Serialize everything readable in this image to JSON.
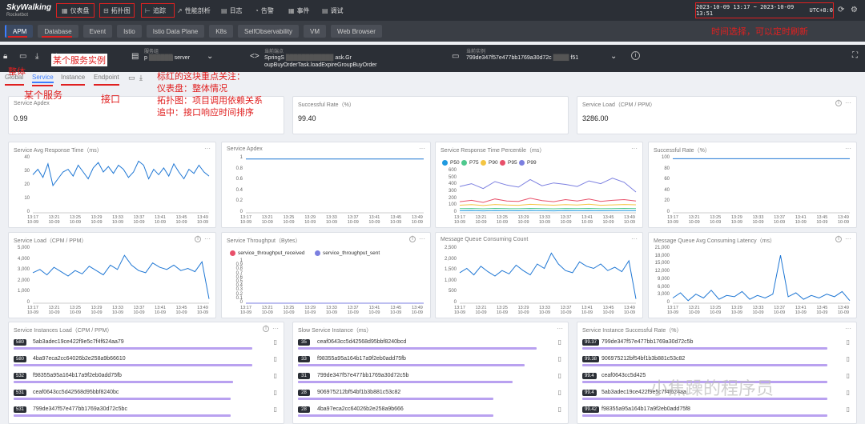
{
  "logo": {
    "title": "SkyWalking",
    "subtitle": "Rocketbot"
  },
  "nav": [
    {
      "icon": "▦",
      "label": "仪表盘"
    },
    {
      "icon": "⊟",
      "label": "拓扑图"
    },
    {
      "icon": "⊢",
      "label": "追踪"
    },
    {
      "icon": "↗",
      "label": "性能剖析"
    },
    {
      "icon": "▤",
      "label": "日志"
    },
    {
      "icon": "◔",
      "label": "告警"
    },
    {
      "icon": "▦",
      "label": "事件"
    },
    {
      "icon": "▤",
      "label": "调试"
    }
  ],
  "time": {
    "range": "2023-10-09 13:17 ~ 2023-10-09 13:51",
    "tz": "UTC+8:0"
  },
  "layers": [
    "APM",
    "Database",
    "Event",
    "Istio",
    "Istio Data Plane",
    "K8s",
    "SelfObservability",
    "VM",
    "Web Browser"
  ],
  "selectors": {
    "group": {
      "label": "服务组",
      "value": "p"
    },
    "service": {
      "label": "当前服务",
      "value": "server"
    },
    "endpoint": {
      "label": "当前端点",
      "value": "SpringS",
      "value2": "ask.Gr",
      "value3": "oupBuyOrderTask.loadExpireGroupBuyOrder"
    },
    "instance": {
      "label": "当前实例",
      "value": "799de347f57e477bb1769a30d72c",
      "value2": "f51"
    }
  },
  "tabs": [
    "Global",
    "Service",
    "Instance",
    "Endpoint"
  ],
  "annotations": {
    "time": "时间选择，可以定时刷新",
    "instance": "某个服务实例",
    "global": "整体",
    "service": "某个服务",
    "endpoint": "接口",
    "notes": [
      "标红的这块重点关注：",
      "仪表盘：整体情况",
      "拓扑图：项目调用依赖关系",
      "追中：接口响应时间排序"
    ]
  },
  "cards": {
    "apdex": {
      "title": "Service Apdex",
      "value": "0.99"
    },
    "success": {
      "title": "Successful Rate（%）",
      "value": "99.40"
    },
    "load": {
      "title": "Service Load（CPM / PPM）",
      "value": "3286.00"
    },
    "c1": {
      "title": "Service Avg Response Time（ms）"
    },
    "c2": {
      "title": "Service Apdex"
    },
    "c3": {
      "title": "Service Response Time Percentile（ms）"
    },
    "c4": {
      "title": "Successful Rate（%）"
    },
    "c5": {
      "title": "Service Load（CPM / PPM）"
    },
    "c6": {
      "title": "Service Throughput（Bytes）"
    },
    "c7": {
      "title": "Message Queue Consuming Count"
    },
    "c8": {
      "title": "Message Queue Avg Consuming Latency（ms）"
    },
    "l1": {
      "title": "Service Instances Load（CPM / PPM）"
    },
    "l2": {
      "title": "Slow Service Instance（ms）"
    },
    "l3": {
      "title": "Service Instance Successful Rate（%）"
    }
  },
  "xticks": [
    "13:17\n10-09",
    "13:21\n10-09",
    "13:25\n10-09",
    "13:29\n10-09",
    "13:33\n10-09",
    "13:37\n10-09",
    "13:41\n10-09",
    "13:45\n10-09",
    "13:49\n10-09"
  ],
  "chart_data": [
    {
      "type": "line",
      "title": "Service Avg Response Time（ms）",
      "ylim": [
        0,
        40
      ],
      "yticks": [
        0,
        10,
        20,
        30,
        40
      ],
      "series": [
        {
          "color": "#1f77d4",
          "values": [
            28,
            32,
            26,
            36,
            20,
            25,
            30,
            32,
            27,
            35,
            30,
            25,
            33,
            37,
            30,
            34,
            29,
            35,
            32,
            26,
            30,
            38,
            35,
            25,
            32,
            28,
            33,
            27,
            36,
            30,
            25,
            32,
            29,
            35,
            30,
            27
          ]
        }
      ]
    },
    {
      "type": "line",
      "title": "Service Apdex",
      "ylim": [
        0,
        1
      ],
      "yticks": [
        0,
        0.2,
        0.4,
        0.6,
        0.8,
        1
      ],
      "series": [
        {
          "color": "#1f77d4",
          "values": [
            0.99,
            0.99,
            0.99,
            0.99,
            0.99,
            0.99,
            0.99,
            0.99,
            0.99,
            0.99
          ]
        }
      ]
    },
    {
      "type": "line",
      "title": "Service Response Time Percentile（ms）",
      "ylim": [
        0,
        600
      ],
      "yticks": [
        0,
        100,
        200,
        300,
        400,
        500,
        600
      ],
      "series": [
        {
          "name": "P50",
          "color": "#1f9ae0",
          "values": [
            30,
            32,
            28,
            31,
            30,
            29,
            33,
            30,
            28,
            31,
            30,
            32,
            29,
            30,
            31,
            30
          ]
        },
        {
          "name": "P75",
          "color": "#4fc98e",
          "values": [
            60,
            62,
            58,
            64,
            60,
            59,
            63,
            61,
            58,
            62,
            60,
            64,
            59,
            60,
            63,
            61
          ]
        },
        {
          "name": "P90",
          "color": "#f4c542",
          "values": [
            110,
            118,
            105,
            120,
            112,
            108,
            122,
            115,
            110,
            118,
            112,
            125,
            108,
            114,
            120,
            115
          ]
        },
        {
          "name": "P95",
          "color": "#e8506a",
          "values": [
            160,
            180,
            150,
            200,
            170,
            165,
            210,
            175,
            160,
            190,
            170,
            200,
            165,
            180,
            190,
            170
          ]
        },
        {
          "name": "P99",
          "color": "#7b7fe0",
          "values": [
            380,
            420,
            350,
            450,
            400,
            370,
            480,
            390,
            430,
            410,
            380,
            460,
            420,
            500,
            440,
            300
          ]
        }
      ]
    },
    {
      "type": "line",
      "title": "Successful Rate（%）",
      "ylim": [
        0,
        100
      ],
      "yticks": [
        0,
        20,
        40,
        60,
        80,
        100
      ],
      "series": [
        {
          "color": "#1f77d4",
          "values": [
            99.4,
            99.4,
            99.4,
            99.4,
            99.4,
            99.4,
            99.4,
            99.4
          ]
        }
      ]
    },
    {
      "type": "line",
      "title": "Service Load（CPM / PPM）",
      "ylim": [
        0,
        5000
      ],
      "yticks": [
        0,
        1000,
        2000,
        3000,
        4000,
        5000
      ],
      "series": [
        {
          "color": "#1f77d4",
          "values": [
            2800,
            3100,
            2600,
            3300,
            2900,
            2500,
            3000,
            2700,
            3400,
            3000,
            2600,
            3500,
            3100,
            4400,
            3500,
            3000,
            2800,
            3700,
            3300,
            3100,
            3500,
            3000,
            3200,
            2900,
            3800,
            400
          ]
        }
      ]
    },
    {
      "type": "line",
      "title": "Service Throughput（Bytes）",
      "ylim": [
        0,
        1
      ],
      "yticks": [
        0,
        0.1,
        0.2,
        0.3,
        0.4,
        0.5,
        0.6,
        0.7,
        0.8,
        0.9,
        1
      ],
      "series": [
        {
          "name": "service_throughput_received",
          "color": "#e8506a",
          "values": [
            0,
            0,
            0,
            0,
            0,
            0,
            0
          ]
        },
        {
          "name": "service_throughput_sent",
          "color": "#7b7fe0",
          "values": [
            0,
            0,
            0,
            0,
            0,
            0,
            0
          ]
        }
      ]
    },
    {
      "type": "line",
      "title": "Message Queue Consuming Count",
      "ylim": [
        0,
        2500
      ],
      "yticks": [
        0,
        500,
        1000,
        1500,
        2000,
        2500
      ],
      "series": [
        {
          "color": "#1f77d4",
          "values": [
            1400,
            1600,
            1300,
            1700,
            1450,
            1250,
            1500,
            1350,
            1750,
            1500,
            1300,
            1800,
            1600,
            2300,
            1800,
            1500,
            1400,
            1900,
            1700,
            1600,
            1800,
            1500,
            1650,
            1450,
            1950,
            200
          ]
        }
      ]
    },
    {
      "type": "line",
      "title": "Message Queue Avg Consuming Latency（ms）",
      "ylim": [
        0,
        21000
      ],
      "yticks": [
        0,
        3000,
        6000,
        9000,
        12000,
        15000,
        18000,
        21000
      ],
      "series": [
        {
          "color": "#1f77d4",
          "values": [
            2000,
            4000,
            1000,
            3500,
            2000,
            5000,
            1500,
            3000,
            2500,
            4500,
            1500,
            3000,
            2000,
            3500,
            18500,
            2500,
            4000,
            1500,
            3000,
            2000,
            3500,
            2500,
            4500,
            1000
          ]
        }
      ]
    }
  ],
  "lists": {
    "l1": [
      {
        "v": "580",
        "t": "5ab3adec19ce422f9e5c7f4f624aa79",
        "w": 0.98
      },
      {
        "v": "580",
        "t": "4ba97eca2cc64026b2e258a9b66610",
        "w": 0.98
      },
      {
        "v": "532",
        "t": "f98355a95a164b17a9f2eb0add75fb",
        "w": 0.9
      },
      {
        "v": "531",
        "t": "ceaf0643cc5d42568d95bbf8240bc",
        "w": 0.89
      },
      {
        "v": "531",
        "t": "799de347f57e477bb1769a30d72c5bc",
        "w": 0.89
      }
    ],
    "l2": [
      {
        "v": "35",
        "t": "ceaf0643cc5d42568d95bbf8240bcd",
        "w": 0.98
      },
      {
        "v": "33",
        "t": "f98355a95a164b17a9f2eb0add75fb",
        "w": 0.93
      },
      {
        "v": "31",
        "t": "799de347f57e477bb1769a30d72c5b",
        "w": 0.88
      },
      {
        "v": "28",
        "t": "906975212bf54bf1b3b881c53c82",
        "w": 0.8
      },
      {
        "v": "28",
        "t": "4ba97eca2cc64026b2e258a9b666",
        "w": 0.8
      }
    ],
    "l3": [
      {
        "v": "99.37",
        "t": "799de347f57e477bb1769a30d72c5b",
        "w": 0.99
      },
      {
        "v": "99.38",
        "t": "906975212bf54bf1b3b881c53c82",
        "w": 0.99
      },
      {
        "v": "99.4",
        "t": "ceaf0643cc5d425",
        "w": 0.99
      },
      {
        "v": "99.4",
        "t": "5ab3adec19ce422f9e5c7f4f624aa",
        "w": 0.99
      },
      {
        "v": "99.42",
        "t": "f98355a95a164b17a9f2eb0add75f8",
        "w": 0.99
      }
    ]
  },
  "watermark": "小焦躁的程序员"
}
